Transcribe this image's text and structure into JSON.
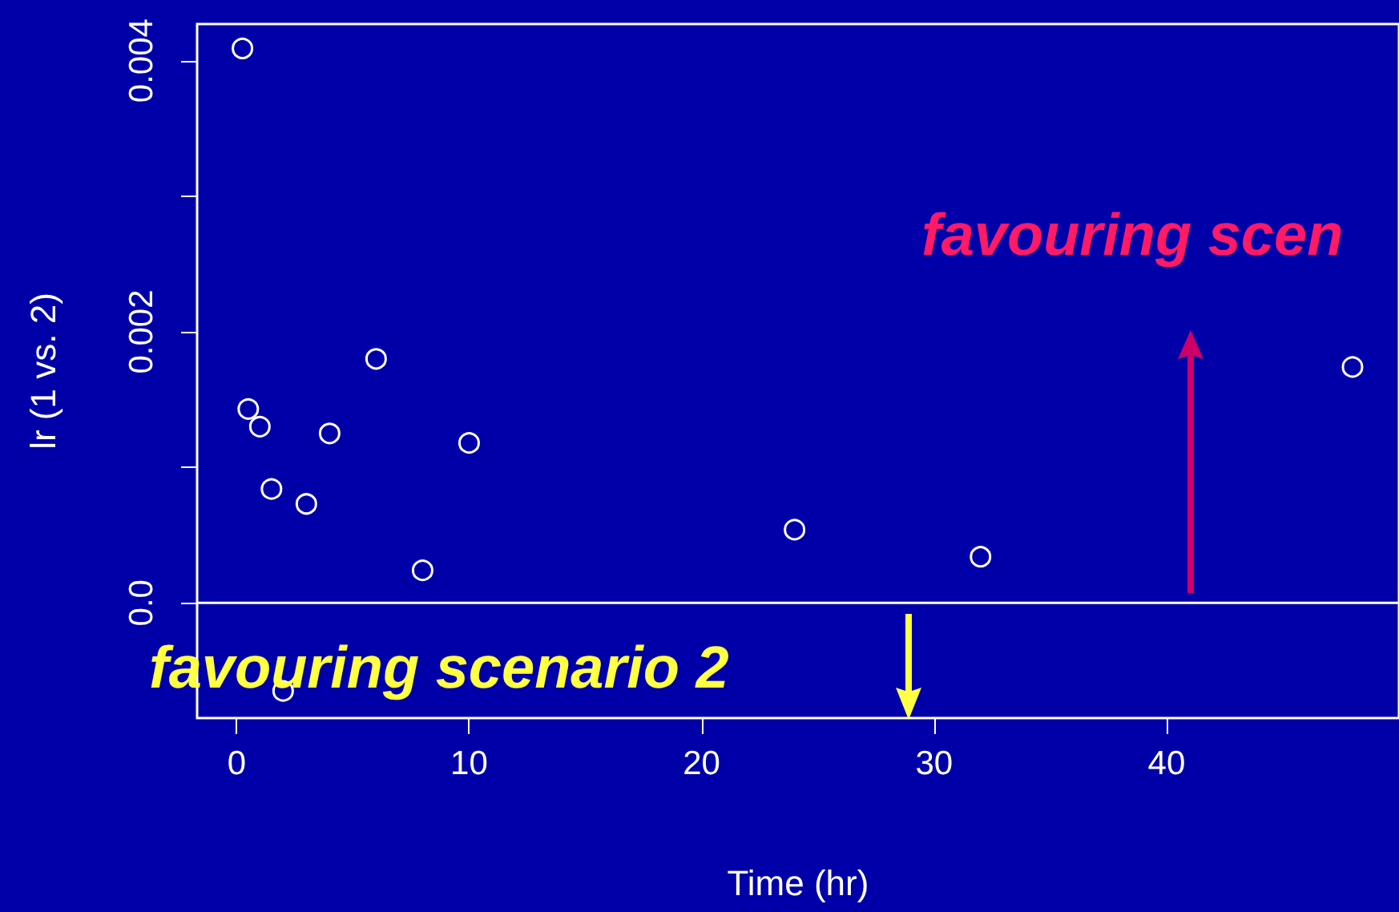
{
  "chart_data": {
    "type": "scatter",
    "xlabel": "Time (hr)",
    "ylabel": "lr (1 vs. 2)",
    "x": [
      0.25,
      0.5,
      1,
      1.5,
      2,
      3,
      4,
      6,
      8,
      10,
      24,
      32,
      48
    ],
    "values": [
      0.00409,
      0.00143,
      0.0013,
      0.00084,
      -0.00065,
      0.00073,
      0.00125,
      0.0018,
      0.00024,
      0.00118,
      0.00054,
      0.00034,
      0.00174
    ],
    "color": "#ffffff",
    "marker": "circle",
    "xlim": [
      -1.7,
      50
    ],
    "xticks": [
      0,
      10,
      20,
      30,
      40
    ],
    "ylim": [
      -0.00085,
      0.00427
    ],
    "yticks": [
      {
        "value": 0,
        "label": "0.0"
      },
      {
        "value": 0.001,
        "label": null
      },
      {
        "value": 0.002,
        "label": "0.002"
      },
      {
        "value": 0.003,
        "label": null
      },
      {
        "value": 0.004,
        "label": "0.004"
      }
    ],
    "grid": false,
    "ref_lines": [
      {
        "axis": "y",
        "value": 0,
        "color": "#ffffff",
        "line_style": "solid"
      }
    ],
    "annotations": [
      "favouring scen",
      "favouring scenario 2"
    ]
  }
}
